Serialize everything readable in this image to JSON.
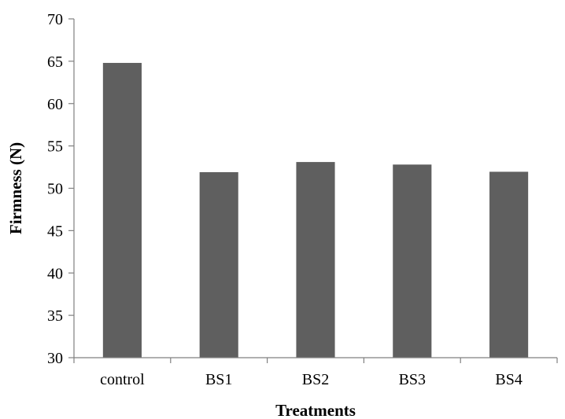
{
  "chart_data": {
    "type": "bar",
    "title": "",
    "xlabel": "Treatments",
    "ylabel": "Firmness (N)",
    "categories": [
      "control",
      "BS1",
      "BS2",
      "BS3",
      "BS4"
    ],
    "values": [
      64.8,
      51.9,
      53.1,
      52.8,
      51.95
    ],
    "ylim": [
      30,
      70
    ],
    "yticks": [
      30,
      35,
      40,
      45,
      50,
      55,
      60,
      65,
      70
    ],
    "ytick_labels": [
      "30",
      "35",
      "40",
      "45",
      "50",
      "55",
      "60",
      "65",
      "70"
    ],
    "grid": false,
    "legend": "none",
    "bar_color": "#5f5f5f"
  }
}
